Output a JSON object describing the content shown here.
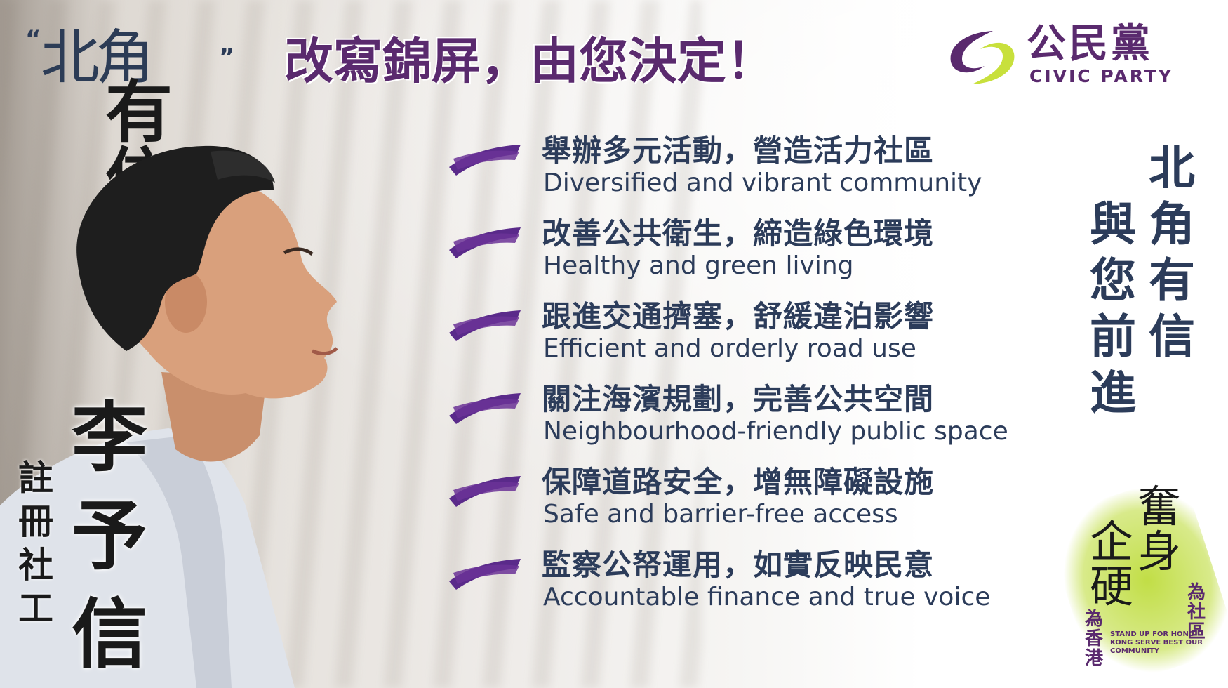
{
  "brand": {
    "open_quote": "“",
    "close_quote": "”",
    "line1": "北角",
    "line2": "有信"
  },
  "headline": "改寫錦屏，由您決定！",
  "party": {
    "name_zh": "公民黨",
    "name_en": "CIVIC PARTY",
    "accent_purple": "#5a2a6e",
    "accent_green": "#c8e03c"
  },
  "candidate": {
    "name_chars": [
      "李",
      "予",
      "信"
    ],
    "title_chars": [
      "註",
      "冊",
      "社",
      "工"
    ]
  },
  "platform": [
    {
      "zh": "舉辦多元活動，營造活力社區",
      "en": "Diversified and vibrant community"
    },
    {
      "zh": "改善公共衛生，締造綠色環境",
      "en": "Healthy and green living"
    },
    {
      "zh": "跟進交通擠塞，舒緩違泊影響",
      "en": "Efficient and orderly road use"
    },
    {
      "zh": "關注海濱規劃，完善公共空間",
      "en": "Neighbourhood-friendly public space"
    },
    {
      "zh": "保障道路安全，增無障礙設施",
      "en": "Safe and barrier-free access"
    },
    {
      "zh": "監察公帑運用，如實反映民意",
      "en": "Accountable finance and true voice"
    }
  ],
  "slogan": {
    "col1": [
      "北",
      "角",
      "有",
      "信"
    ],
    "col2": [
      "與",
      "您",
      "前",
      "進"
    ]
  },
  "seal": {
    "chars_a": "奮身",
    "chars_b": "企硬",
    "side_a": "為社區",
    "side_b": "為香港",
    "en": "STAND UP FOR HONG KONG SERVE BEST OUR COMMUNITY"
  },
  "icons": [
    "purple-brush-stroke-icon",
    "civic-party-swoosh-icon"
  ]
}
